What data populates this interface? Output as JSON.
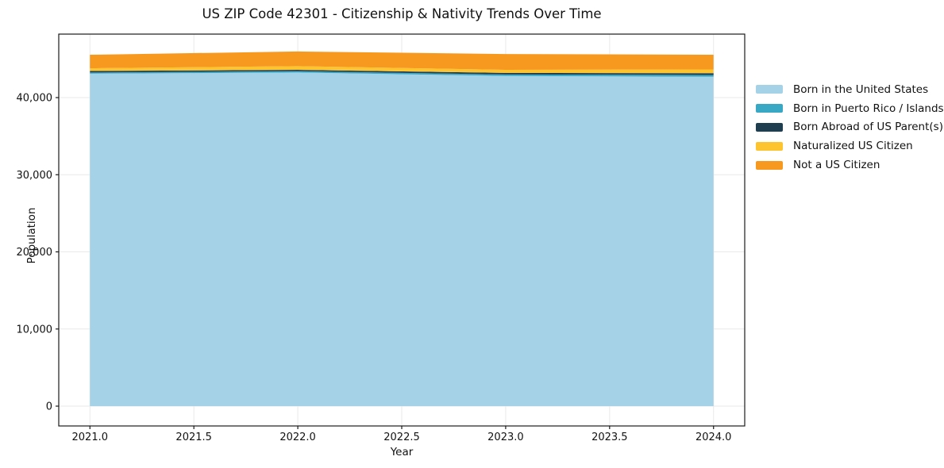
{
  "chart_data": {
    "type": "area",
    "stacked": true,
    "title": "US ZIP Code 42301 - Citizenship & Nativity Trends Over Time",
    "xlabel": "Year",
    "ylabel": "Population",
    "x": [
      2021.0,
      2022.0,
      2023.0,
      2024.0
    ],
    "series": [
      {
        "name": "Born in the United States",
        "color": "#a6d2e8",
        "values": [
          43100,
          43250,
          42800,
          42700
        ]
      },
      {
        "name": "Born in Puerto Rico / Islands",
        "color": "#39a8c4",
        "values": [
          150,
          170,
          200,
          230
        ]
      },
      {
        "name": "Born Abroad of US Parent(s)",
        "color": "#1f3f51",
        "values": [
          200,
          180,
          200,
          230
        ]
      },
      {
        "name": "Naturalized US Citizen",
        "color": "#fdc430",
        "values": [
          350,
          480,
          400,
          490
        ]
      },
      {
        "name": "Not a US Citizen",
        "color": "#f8991f",
        "values": [
          1750,
          1900,
          2050,
          1900
        ]
      }
    ],
    "xticks": [
      2021.0,
      2021.5,
      2022.0,
      2022.5,
      2023.0,
      2023.5,
      2024.0
    ],
    "yticks": [
      0,
      10000,
      20000,
      30000,
      40000
    ],
    "xlim": [
      2020.85,
      2024.15
    ],
    "ylim": [
      -2570,
      48230
    ],
    "grid": true,
    "legend_position": "right",
    "colors": {
      "grid": "#e9e9e9",
      "spine": "#1a1a1a",
      "text": "#111111"
    }
  }
}
